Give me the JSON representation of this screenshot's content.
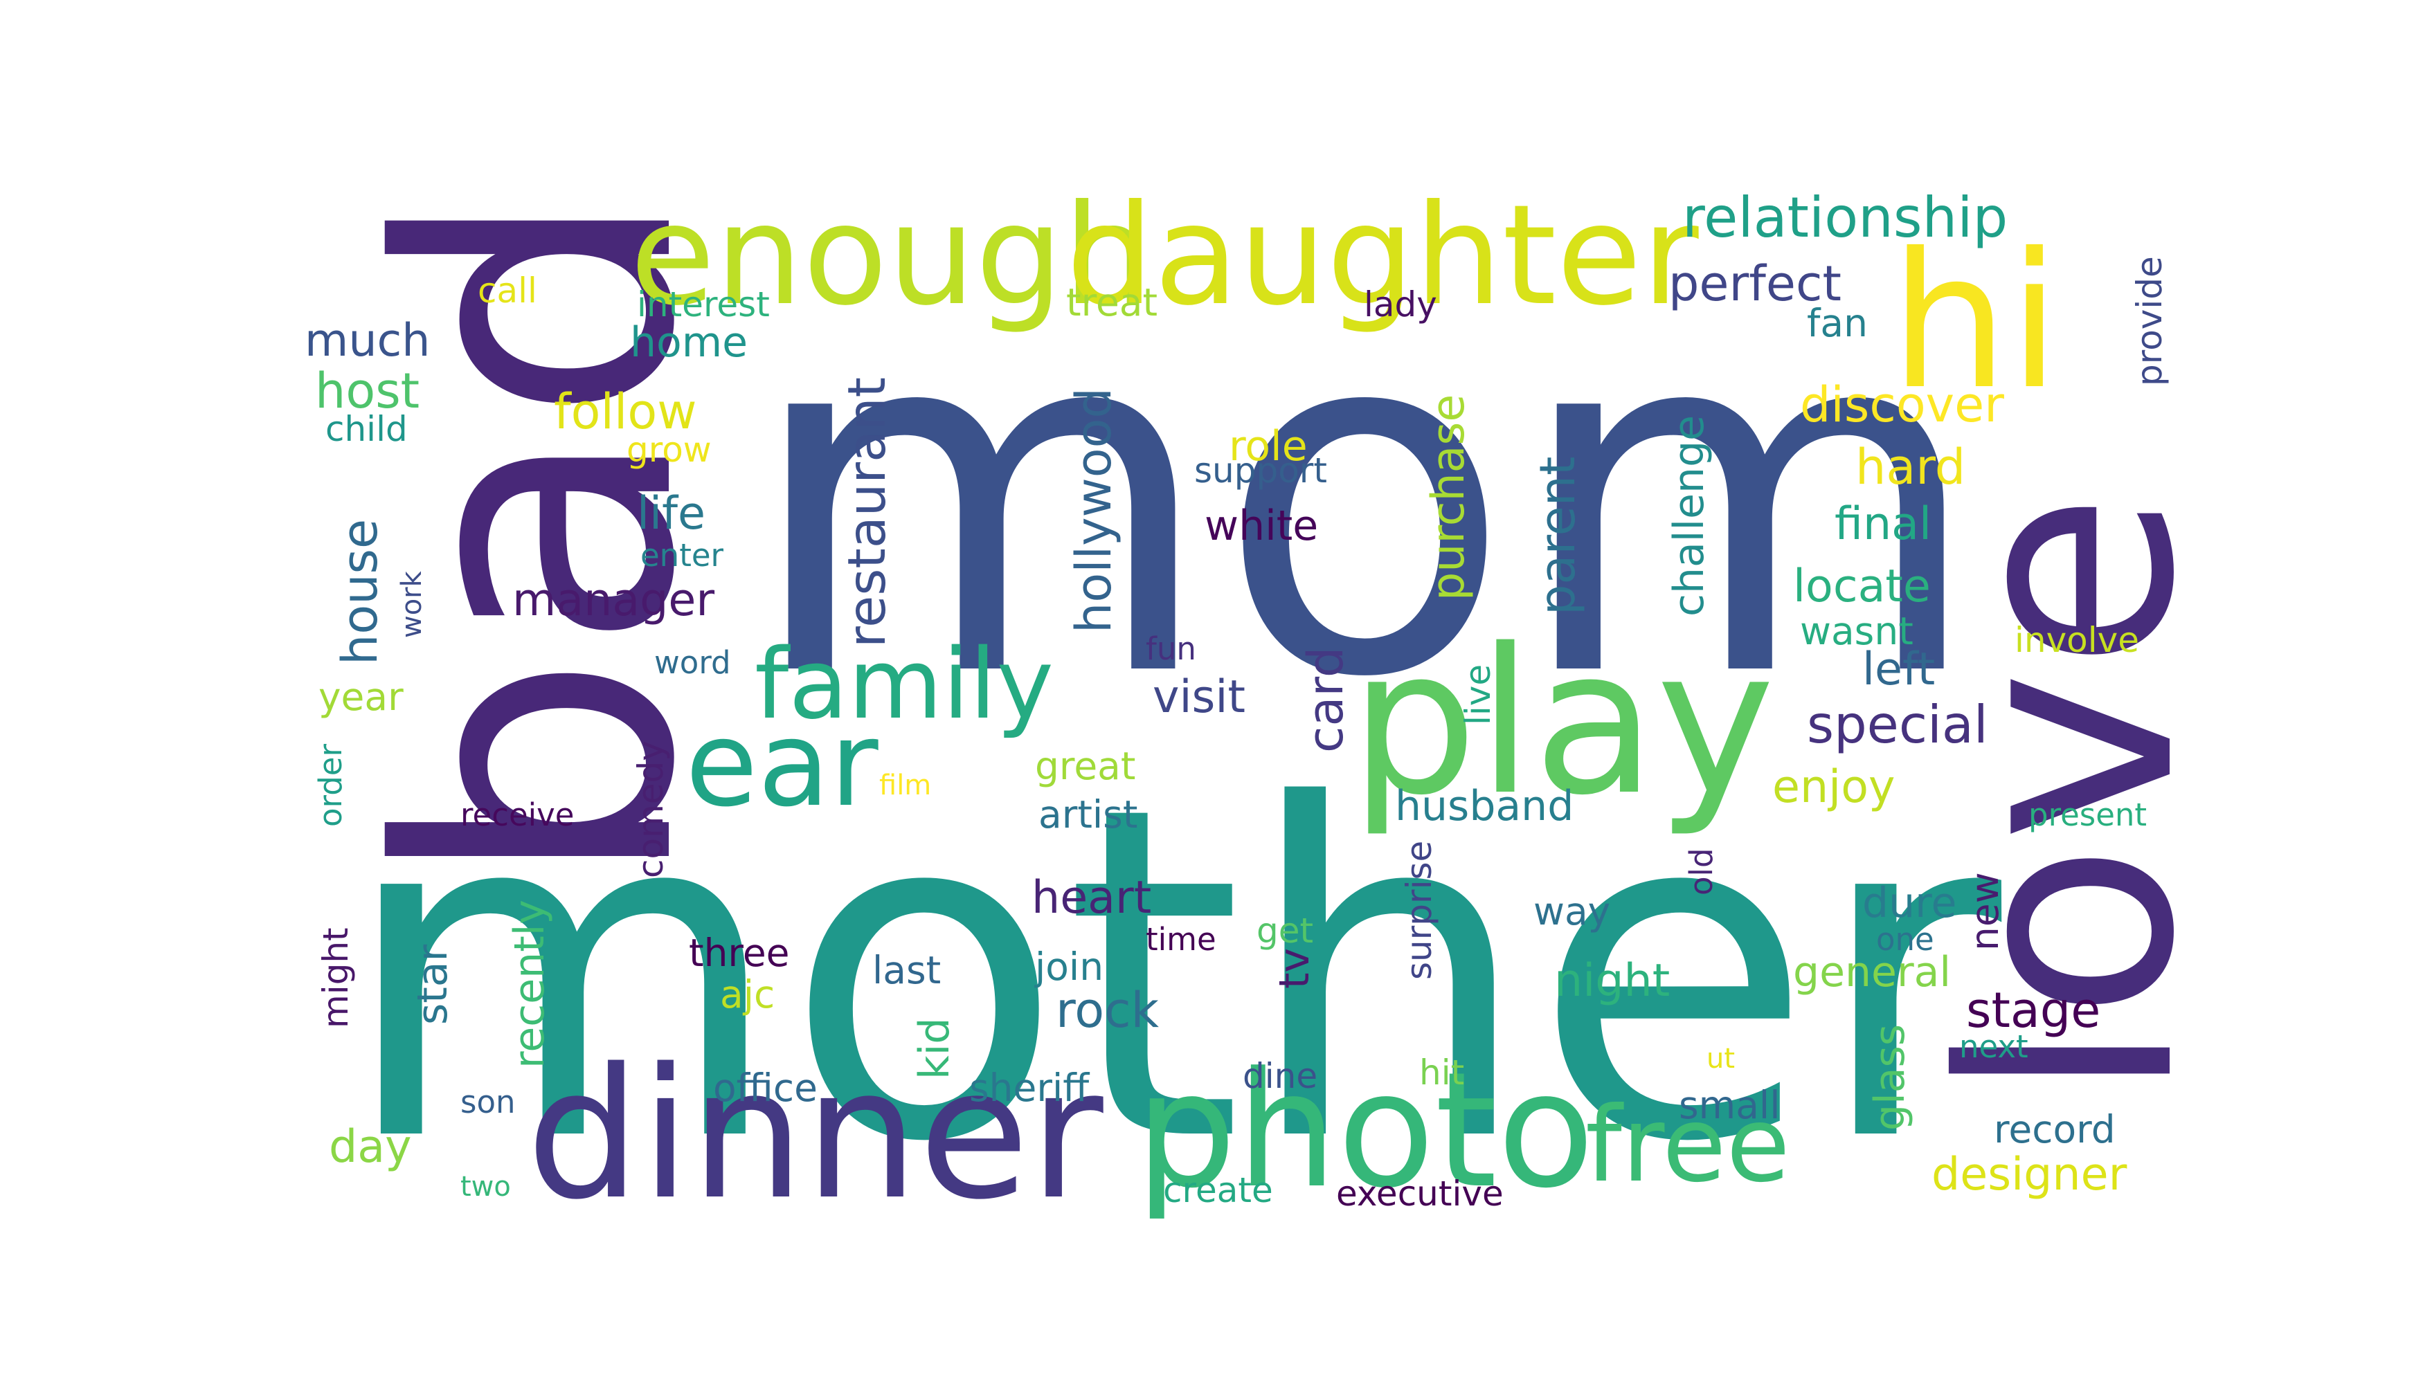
{
  "words": [
    {
      "text": "mom",
      "color": "#3b528b"
    },
    {
      "text": "mother",
      "color": "#1f988b"
    },
    {
      "text": "bad",
      "color": "#482878"
    },
    {
      "text": "love",
      "color": "#472d7b"
    },
    {
      "text": "play",
      "color": "#5ec962"
    },
    {
      "text": "enough",
      "color": "#bddf26"
    },
    {
      "text": "daughter",
      "color": "#d8e219"
    },
    {
      "text": "hi",
      "color": "#f8e621"
    },
    {
      "text": "dinner",
      "color": "#443983"
    },
    {
      "text": "photo",
      "color": "#35b779"
    },
    {
      "text": "ear",
      "color": "#20a486"
    },
    {
      "text": "family",
      "color": "#25ab82"
    },
    {
      "text": "free",
      "color": "#3bbb75"
    },
    {
      "text": "relationship",
      "color": "#1fa088"
    },
    {
      "text": "perfect",
      "color": "#404688"
    },
    {
      "text": "discover",
      "color": "#fde725"
    },
    {
      "text": "hard",
      "color": "#f1e51d"
    },
    {
      "text": "final",
      "color": "#22a785"
    },
    {
      "text": "locate",
      "color": "#2ab07f"
    },
    {
      "text": "wasnt",
      "color": "#27ad81"
    },
    {
      "text": "left",
      "color": "#31688e"
    },
    {
      "text": "special",
      "color": "#46327e"
    },
    {
      "text": "enjoy",
      "color": "#c2df23"
    },
    {
      "text": "new",
      "color": "#481c6e"
    },
    {
      "text": "dure",
      "color": "#287c8e"
    },
    {
      "text": "one",
      "color": "#2c728e"
    },
    {
      "text": "general",
      "color": "#84d44b"
    },
    {
      "text": "stage",
      "color": "#440154"
    },
    {
      "text": "glass",
      "color": "#52c569"
    },
    {
      "text": "next",
      "color": "#1f9e89"
    },
    {
      "text": "small",
      "color": "#31678e"
    },
    {
      "text": "record",
      "color": "#2d708e"
    },
    {
      "text": "designer",
      "color": "#dde318"
    },
    {
      "text": "fan",
      "color": "#26818e"
    },
    {
      "text": "provide",
      "color": "#3e4a89"
    },
    {
      "text": "involve",
      "color": "#c8e020"
    },
    {
      "text": "present",
      "color": "#29af7f"
    },
    {
      "text": "call",
      "color": "#e5e419"
    },
    {
      "text": "interest",
      "color": "#2db27d"
    },
    {
      "text": "treat",
      "color": "#a2da37"
    },
    {
      "text": "lady",
      "color": "#471063"
    },
    {
      "text": "much",
      "color": "#3a548c"
    },
    {
      "text": "home",
      "color": "#1f948c"
    },
    {
      "text": "host",
      "color": "#4ec36b"
    },
    {
      "text": "child",
      "color": "#1f968b"
    },
    {
      "text": "follow",
      "color": "#e2e418"
    },
    {
      "text": "grow",
      "color": "#efe51c"
    },
    {
      "text": "role",
      "color": "#e5e419"
    },
    {
      "text": "support",
      "color": "#355f8d"
    },
    {
      "text": "white",
      "color": "#450559"
    },
    {
      "text": "life",
      "color": "#2a788e"
    },
    {
      "text": "enter",
      "color": "#25848e"
    },
    {
      "text": "house",
      "color": "#30698e"
    },
    {
      "text": "work",
      "color": "#3d4d8a"
    },
    {
      "text": "manager",
      "color": "#481a6c"
    },
    {
      "text": "restaurant",
      "color": "#3c4f8a"
    },
    {
      "text": "hollywood",
      "color": "#33638d"
    },
    {
      "text": "purchase",
      "color": "#a8db34"
    },
    {
      "text": "parent",
      "color": "#2d708e"
    },
    {
      "text": "challenge",
      "color": "#228d8d"
    },
    {
      "text": "word",
      "color": "#2f6c8e"
    },
    {
      "text": "fun",
      "color": "#46307e"
    },
    {
      "text": "visit",
      "color": "#3f4788"
    },
    {
      "text": "card",
      "color": "#443983"
    },
    {
      "text": "live",
      "color": "#22a884"
    },
    {
      "text": "year",
      "color": "#a2da37"
    },
    {
      "text": "order",
      "color": "#1f9e89"
    },
    {
      "text": "comedy",
      "color": "#481f70"
    },
    {
      "text": "film",
      "color": "#fde725"
    },
    {
      "text": "great",
      "color": "#a0da39"
    },
    {
      "text": "artist",
      "color": "#2c738e"
    },
    {
      "text": "husband",
      "color": "#277f8e"
    },
    {
      "text": "receive",
      "color": "#46085c"
    },
    {
      "text": "heart",
      "color": "#482475"
    },
    {
      "text": "way",
      "color": "#2d718e"
    },
    {
      "text": "old",
      "color": "#482576"
    },
    {
      "text": "surprise",
      "color": "#404588"
    },
    {
      "text": "might",
      "color": "#481769"
    },
    {
      "text": "star",
      "color": "#2a768e"
    },
    {
      "text": "recently",
      "color": "#3dbc74"
    },
    {
      "text": "three",
      "color": "#440154"
    },
    {
      "text": "ajc",
      "color": "#c0df25"
    },
    {
      "text": "last",
      "color": "#31678e"
    },
    {
      "text": "time",
      "color": "#440154"
    },
    {
      "text": "join",
      "color": "#27808e"
    },
    {
      "text": "get",
      "color": "#54c568"
    },
    {
      "text": "tv",
      "color": "#481b6d"
    },
    {
      "text": "night",
      "color": "#2db27d"
    },
    {
      "text": "rock",
      "color": "#2e6e8e"
    },
    {
      "text": "kid",
      "color": "#37b878"
    },
    {
      "text": "day",
      "color": "#8bd646"
    },
    {
      "text": "son",
      "color": "#355f8d"
    },
    {
      "text": "two",
      "color": "#35b779"
    },
    {
      "text": "office",
      "color": "#30698e"
    },
    {
      "text": "sheriff",
      "color": "#2a778e"
    },
    {
      "text": "dine",
      "color": "#3b528b"
    },
    {
      "text": "hit",
      "color": "#7ad151"
    },
    {
      "text": "ut",
      "color": "#e8e419"
    },
    {
      "text": "create",
      "color": "#23a983"
    },
    {
      "text": "executive",
      "color": "#440154"
    }
  ]
}
